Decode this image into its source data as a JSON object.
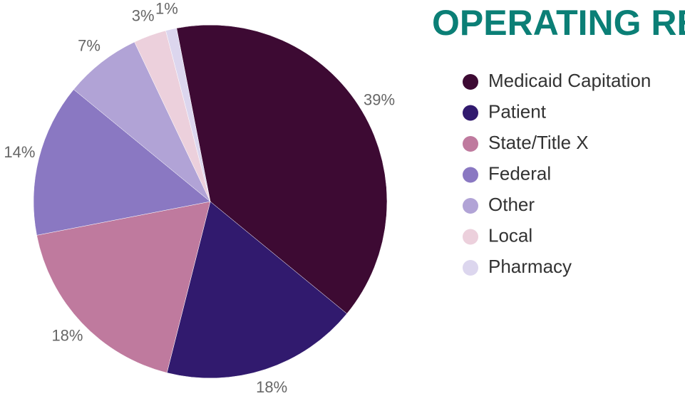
{
  "chart_data": {
    "type": "pie",
    "title": "OPERATING REVENUE",
    "categories": [
      "Medicaid Capitation",
      "Patient",
      "State/Title X",
      "Federal",
      "Other",
      "Local",
      "Pharmacy"
    ],
    "values": [
      39,
      18,
      18,
      14,
      7,
      3,
      1
    ],
    "value_labels": [
      "39%",
      "18%",
      "18%",
      "14%",
      "7%",
      "3%",
      "1%"
    ],
    "colors": [
      "#3d0a33",
      "#311a6e",
      "#bf7a9e",
      "#8a78c2",
      "#b1a3d6",
      "#ecd0dc",
      "#dcd6ee"
    ]
  }
}
